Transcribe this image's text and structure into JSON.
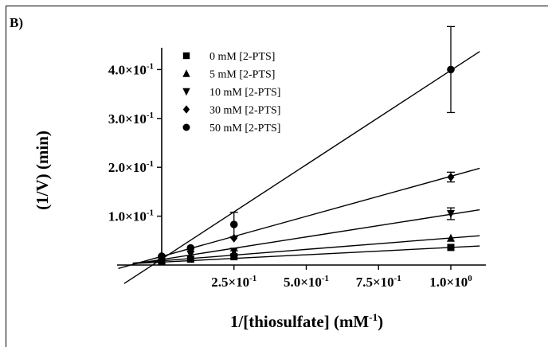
{
  "panel_label": "B)",
  "chart_data": {
    "type": "scatter",
    "xlabel_main": "1/[thiosulfate] (mM",
    "xlabel_sup": "-1",
    "xlabel_end": ")",
    "ylabel": "(1/V) (min)",
    "xlim": [
      -0.2,
      1.1
    ],
    "ylim": [
      0,
      0.44
    ],
    "x_ticks": [
      {
        "value": 0.25,
        "mantissa": "2.5×10",
        "exp": "-1"
      },
      {
        "value": 0.5,
        "mantissa": "5.0×10",
        "exp": "-1"
      },
      {
        "value": 0.75,
        "mantissa": "7.5×10",
        "exp": "-1"
      },
      {
        "value": 1.0,
        "mantissa": "1.0×10",
        "exp": "0"
      }
    ],
    "y_ticks": [
      {
        "value": 0.1,
        "mantissa": "1.0×10",
        "exp": "-1"
      },
      {
        "value": 0.2,
        "mantissa": "2.0×10",
        "exp": "-1"
      },
      {
        "value": 0.3,
        "mantissa": "3.0×10",
        "exp": "-1"
      },
      {
        "value": 0.4,
        "mantissa": "4.0×10",
        "exp": "-1"
      }
    ],
    "legend_position": "top-left",
    "series": [
      {
        "name": "0 mM [2-PTS]",
        "marker": "square",
        "x": [
          0,
          0.1,
          0.25,
          1.0
        ],
        "y": [
          0.008,
          0.012,
          0.017,
          0.036
        ],
        "err": [
          0,
          0,
          0,
          0
        ],
        "fit": {
          "x": [
            -0.1,
            1.1
          ],
          "y": [
            0.003,
            0.039
          ]
        }
      },
      {
        "name": "5 mM [2-PTS]",
        "marker": "triangle-up",
        "x": [
          0,
          0.1,
          0.25,
          1.0
        ],
        "y": [
          0.01,
          0.015,
          0.025,
          0.055
        ],
        "err": [
          0,
          0,
          0.004,
          0
        ],
        "fit": {
          "x": [
            -0.1,
            1.1
          ],
          "y": [
            0.004,
            0.06
          ]
        }
      },
      {
        "name": "10 mM [2-PTS]",
        "marker": "triangle-down",
        "x": [
          0,
          0.1,
          0.25,
          1.0
        ],
        "y": [
          0.012,
          0.022,
          0.028,
          0.105
        ],
        "err": [
          0,
          0,
          0,
          0.012
        ],
        "fit": {
          "x": [
            -0.1,
            1.1
          ],
          "y": [
            0.002,
            0.113
          ]
        }
      },
      {
        "name": "30 mM [2-PTS]",
        "marker": "diamond",
        "x": [
          0,
          0.1,
          0.25,
          1.0
        ],
        "y": [
          0.015,
          0.028,
          0.055,
          0.18
        ],
        "err": [
          0,
          0,
          0,
          0.01
        ],
        "fit": {
          "x": [
            -0.15,
            1.1
          ],
          "y": [
            -0.007,
            0.198
          ]
        }
      },
      {
        "name": "50 mM [2-PTS]",
        "marker": "circle",
        "x": [
          0,
          0.1,
          0.25,
          1.0
        ],
        "y": [
          0.018,
          0.035,
          0.083,
          0.4
        ],
        "err": [
          0,
          0,
          0.025,
          0.088
        ],
        "fit": {
          "x": [
            -0.13,
            1.1
          ],
          "y": [
            -0.038,
            0.437
          ]
        }
      }
    ]
  }
}
